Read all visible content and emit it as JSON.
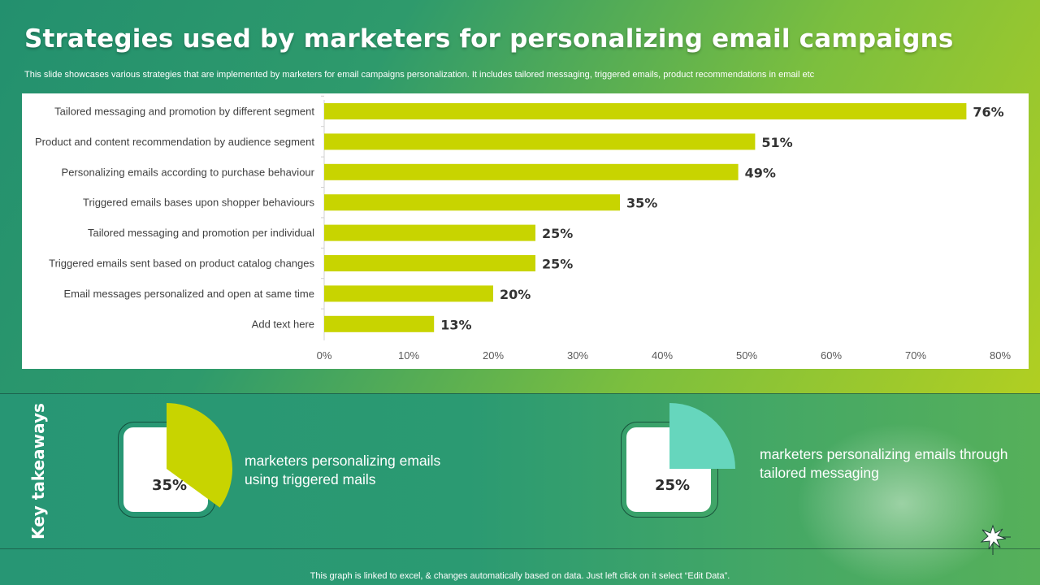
{
  "header": {
    "title": "Strategies used by marketers for personalizing email campaigns",
    "subtitle": "This slide showcases various strategies that are implemented by marketers for email campaigns personalization. It includes tailored messaging, triggered emails, product recommendations in email etc"
  },
  "chart_data": {
    "type": "bar",
    "orientation": "horizontal",
    "categories": [
      "Tailored messaging and promotion by different segment",
      "Product and content recommendation by audience segment",
      "Personalizing emails according to purchase behaviour",
      "Triggered emails bases upon shopper behaviours",
      "Tailored messaging and promotion per individual",
      "Triggered emails sent based on product catalog changes",
      "Email messages personalized and open at same time",
      "Add text here"
    ],
    "values": [
      76,
      51,
      49,
      35,
      25,
      25,
      20,
      13
    ],
    "value_labels": [
      "76%",
      "51%",
      "49%",
      "35%",
      "25%",
      "25%",
      "20%",
      "13%"
    ],
    "xlim": [
      0,
      80
    ],
    "xticks": [
      "0%",
      "10%",
      "20%",
      "30%",
      "40%",
      "50%",
      "60%",
      "70%",
      "80%"
    ],
    "bar_color": "#c8d400",
    "grid": false
  },
  "takeaways": {
    "label": "Key takeaways",
    "items": [
      {
        "value": "35%",
        "percent": 35,
        "color": "#c8d400",
        "text_line1": "marketers personalizing emails",
        "text_line2": "using triggered mails"
      },
      {
        "value": "25%",
        "percent": 25,
        "color": "#66d6bd",
        "text_line1": "marketers personalizing emails through",
        "text_line2": "tailored messaging"
      }
    ]
  },
  "footer": {
    "note": "This graph is linked to excel, & changes automatically based on data. Just left click on it select “Edit Data”."
  }
}
